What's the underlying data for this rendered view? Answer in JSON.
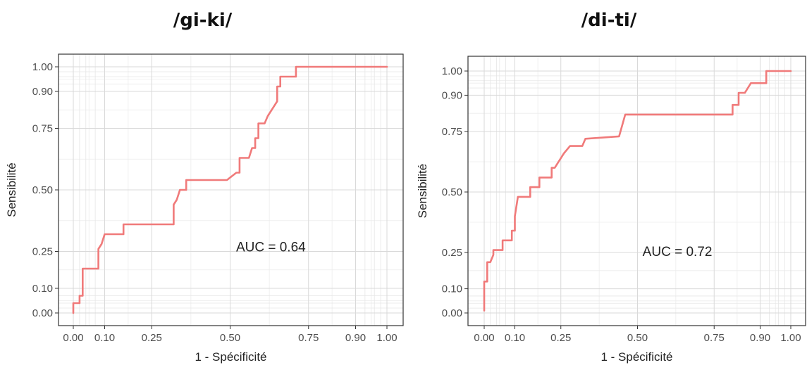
{
  "chart_data": [
    {
      "type": "line",
      "title": "/gi-ki/",
      "xlabel": "1 - Spécificité",
      "ylabel": "Sensibilité",
      "xlim": [
        0,
        1
      ],
      "ylim": [
        0,
        1
      ],
      "x_ticks": [
        0.0,
        0.1,
        0.25,
        0.5,
        0.75,
        0.9,
        1.0
      ],
      "x_tick_labels": [
        "0.00",
        "0.10",
        "0.25",
        "0.50",
        "0.75",
        "0.90",
        "1.00"
      ],
      "y_ticks": [
        0.0,
        0.1,
        0.25,
        0.5,
        0.75,
        0.9,
        1.0
      ],
      "y_tick_labels": [
        "0.00",
        "0.10",
        "0.25",
        "0.50",
        "0.75",
        "0.90",
        "1.00"
      ],
      "annotation": "AUC = 0.64",
      "line_color": "#f07a7a",
      "grid": true,
      "series": [
        {
          "x": [
            0.0,
            0.0,
            0.01,
            0.02,
            0.02,
            0.03,
            0.03,
            0.08,
            0.08,
            0.09,
            0.1,
            0.16,
            0.16,
            0.32,
            0.32,
            0.33,
            0.34,
            0.36,
            0.36,
            0.49,
            0.52,
            0.53,
            0.53,
            0.56,
            0.57,
            0.58,
            0.58,
            0.59,
            0.59,
            0.61,
            0.62,
            0.65,
            0.65,
            0.66,
            0.66,
            0.68,
            0.71,
            0.71,
            1.0
          ],
          "y": [
            0.0,
            0.04,
            0.04,
            0.04,
            0.07,
            0.07,
            0.18,
            0.18,
            0.26,
            0.28,
            0.32,
            0.32,
            0.36,
            0.36,
            0.44,
            0.46,
            0.5,
            0.5,
            0.54,
            0.54,
            0.57,
            0.57,
            0.63,
            0.63,
            0.67,
            0.67,
            0.71,
            0.71,
            0.77,
            0.77,
            0.8,
            0.86,
            0.92,
            0.92,
            0.96,
            0.96,
            0.96,
            1.0,
            1.0
          ]
        }
      ]
    },
    {
      "type": "line",
      "title": "/di-ti/",
      "xlabel": "1 - Spécificité",
      "ylabel": "Sensibilité",
      "xlim": [
        0,
        1
      ],
      "ylim": [
        0,
        1
      ],
      "x_ticks": [
        0.0,
        0.1,
        0.25,
        0.5,
        0.75,
        0.9,
        1.0
      ],
      "x_tick_labels": [
        "0.00",
        "0.10",
        "0.25",
        "0.50",
        "0.75",
        "0.90",
        "1.00"
      ],
      "y_ticks": [
        0.0,
        0.1,
        0.25,
        0.5,
        0.75,
        0.9,
        1.0
      ],
      "y_tick_labels": [
        "0.00",
        "0.10",
        "0.25",
        "0.50",
        "0.75",
        "0.90",
        "1.00"
      ],
      "annotation": "AUC = 0.72",
      "line_color": "#f07a7a",
      "grid": true,
      "series": [
        {
          "x": [
            0.0,
            0.0,
            0.01,
            0.01,
            0.02,
            0.03,
            0.03,
            0.06,
            0.06,
            0.09,
            0.09,
            0.1,
            0.1,
            0.11,
            0.11,
            0.15,
            0.15,
            0.18,
            0.18,
            0.22,
            0.22,
            0.23,
            0.25,
            0.26,
            0.28,
            0.32,
            0.33,
            0.44,
            0.46,
            0.81,
            0.81,
            0.83,
            0.83,
            0.85,
            0.87,
            0.87,
            0.92,
            0.92,
            1.0
          ],
          "y": [
            0.01,
            0.13,
            0.13,
            0.21,
            0.21,
            0.24,
            0.26,
            0.26,
            0.3,
            0.3,
            0.34,
            0.34,
            0.4,
            0.48,
            0.48,
            0.48,
            0.52,
            0.52,
            0.56,
            0.56,
            0.6,
            0.6,
            0.64,
            0.66,
            0.69,
            0.69,
            0.72,
            0.73,
            0.82,
            0.82,
            0.86,
            0.86,
            0.91,
            0.91,
            0.95,
            0.95,
            0.95,
            1.0,
            1.0
          ]
        }
      ]
    }
  ]
}
